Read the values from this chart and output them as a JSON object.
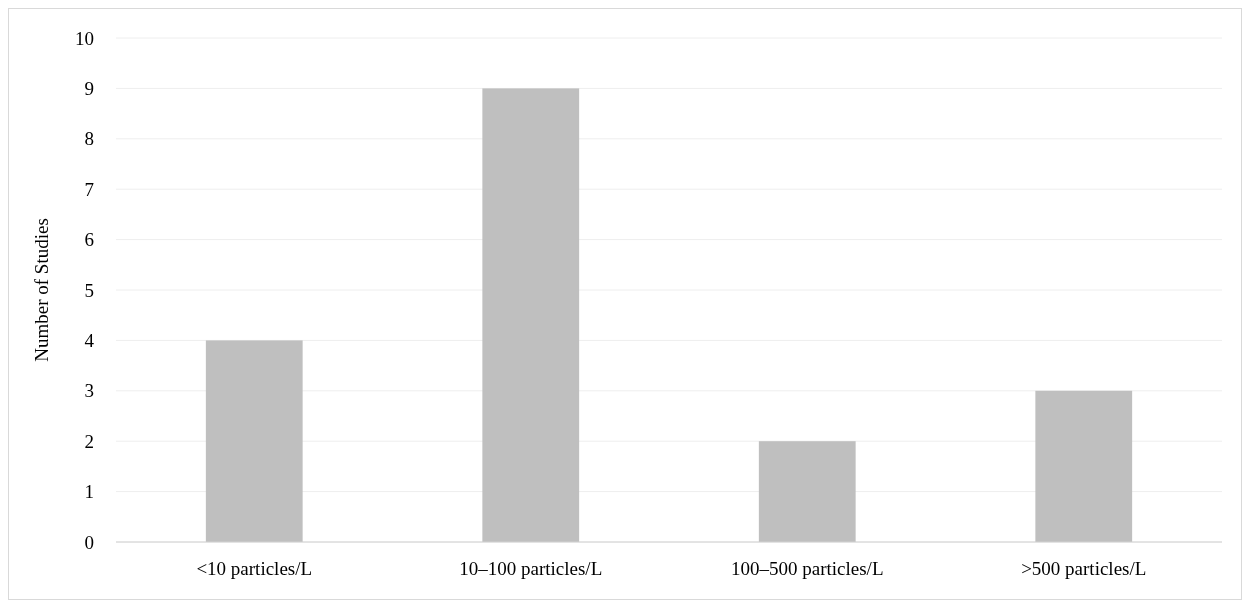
{
  "chart_data": {
    "type": "bar",
    "ylabel": "Number of Studies",
    "categories": [
      "<10 particles/L",
      "10–100 particles/L",
      "100–500 particles/L",
      ">500 particles/L"
    ],
    "values": [
      4,
      9,
      2,
      3
    ],
    "color": "#bfbfbf",
    "ylim": [
      0,
      10
    ],
    "yticks": [
      0,
      1,
      2,
      3,
      4,
      5,
      6,
      7,
      8,
      9,
      10
    ],
    "grid": "y"
  }
}
